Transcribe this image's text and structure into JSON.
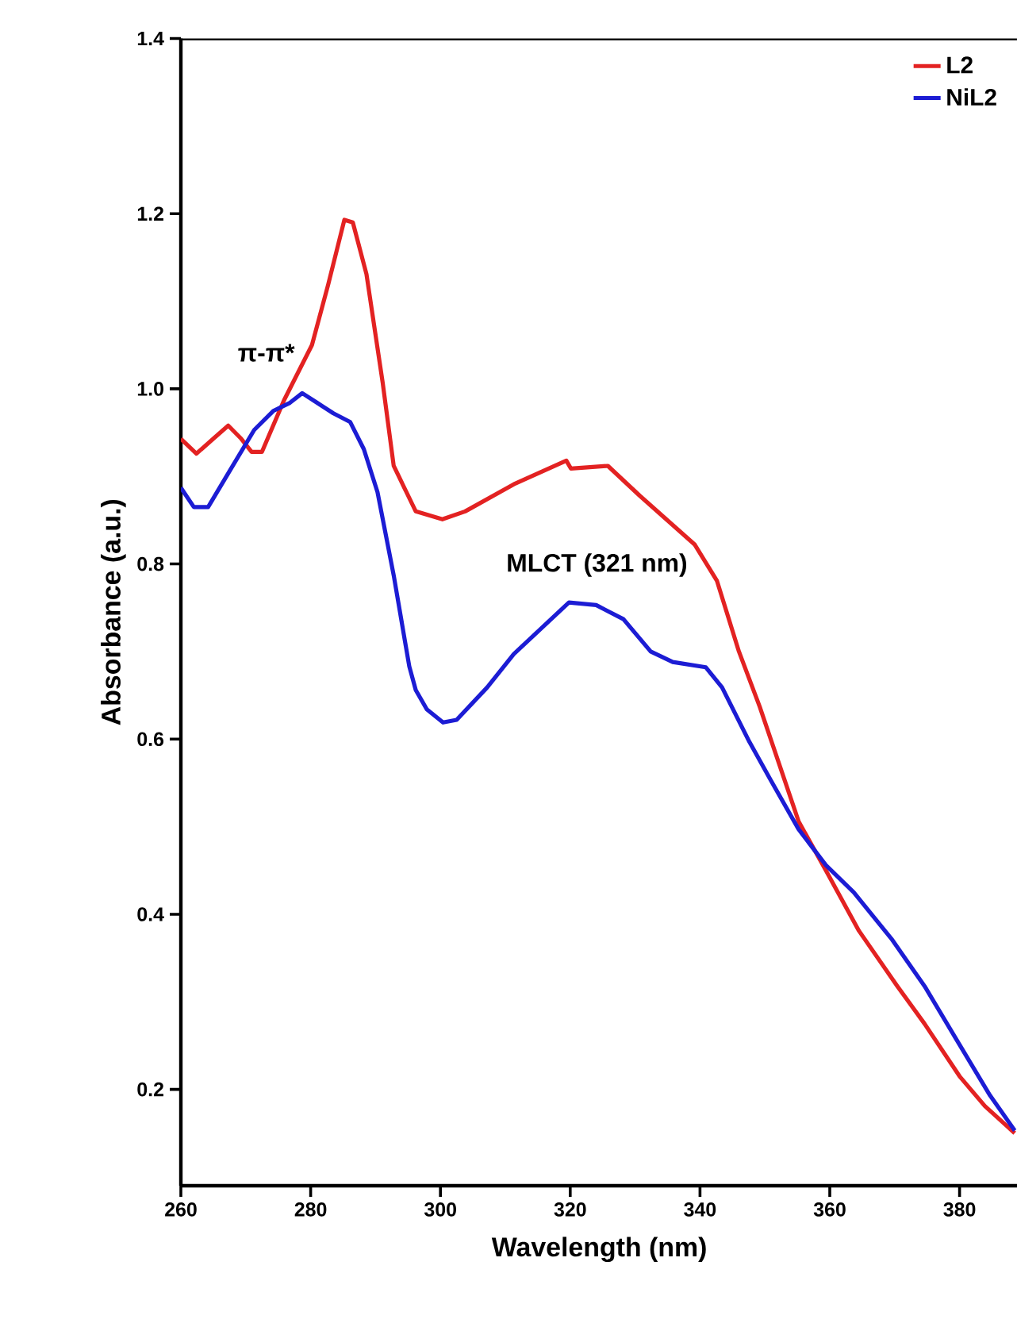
{
  "chart_data": {
    "type": "line",
    "xlabel": "Wavelength (nm)",
    "ylabel": "Absorbance (a.u.)",
    "xlim": [
      260,
      389
    ],
    "ylim": [
      0.09,
      1.4
    ],
    "xticks": [
      260,
      280,
      300,
      320,
      340,
      360,
      380
    ],
    "yticks": [
      0.2,
      0.4,
      0.6,
      0.8,
      {
        "value": 1.0,
        "label": "1.0"
      },
      1.2,
      1.4
    ],
    "legend": "top right",
    "series": [
      {
        "name": "L2",
        "color": "#e32222",
        "x": [
          260,
          262.4,
          265,
          267.3,
          269.3,
          270.9,
          272.5,
          275.9,
          280.2,
          282.7,
          285.2,
          286.5,
          288.6,
          291.1,
          292.8,
          296.2,
          300.3,
          303.8,
          311.3,
          319.4,
          320.1,
          325.8,
          330.7,
          339.2,
          342.6,
          346.0,
          349.2,
          355.2,
          359.4,
          364.5,
          370.4,
          374.6,
          380.0,
          383.9,
          388.5
        ],
        "values": [
          0.943,
          0.926,
          0.943,
          0.958,
          0.943,
          0.928,
          0.928,
          0.987,
          1.05,
          1.119,
          1.193,
          1.19,
          1.131,
          1.007,
          0.912,
          0.86,
          0.851,
          0.86,
          0.891,
          0.918,
          0.909,
          0.912,
          0.878,
          0.822,
          0.781,
          0.7,
          0.637,
          0.506,
          0.45,
          0.381,
          0.318,
          0.275,
          0.215,
          0.181,
          0.15
        ]
      },
      {
        "name": "NiL2",
        "color": "#1c1cd4",
        "x": [
          260,
          262,
          264.2,
          267.5,
          271.3,
          274.3,
          276.8,
          278.7,
          281,
          283.5,
          286.1,
          288.2,
          290.3,
          292.8,
          295.2,
          296.2,
          297.9,
          300.4,
          302.5,
          307.2,
          311.3,
          319.8,
          324,
          328.2,
          332.4,
          335.8,
          340.9,
          343.4,
          347.6,
          350.9,
          355.2,
          359.4,
          363.7,
          369.5,
          374.6,
          379.6,
          384.7,
          388.5
        ],
        "values": [
          0.887,
          0.865,
          0.865,
          0.906,
          0.953,
          0.975,
          0.984,
          0.995,
          0.984,
          0.972,
          0.962,
          0.931,
          0.882,
          0.787,
          0.683,
          0.656,
          0.634,
          0.619,
          0.622,
          0.659,
          0.697,
          0.756,
          0.753,
          0.737,
          0.7,
          0.688,
          0.682,
          0.659,
          0.597,
          0.553,
          0.497,
          0.456,
          0.425,
          0.372,
          0.318,
          0.256,
          0.193,
          0.153
        ]
      }
    ],
    "annotations": [
      "π-π*",
      "MLCT (321 nm)"
    ]
  }
}
